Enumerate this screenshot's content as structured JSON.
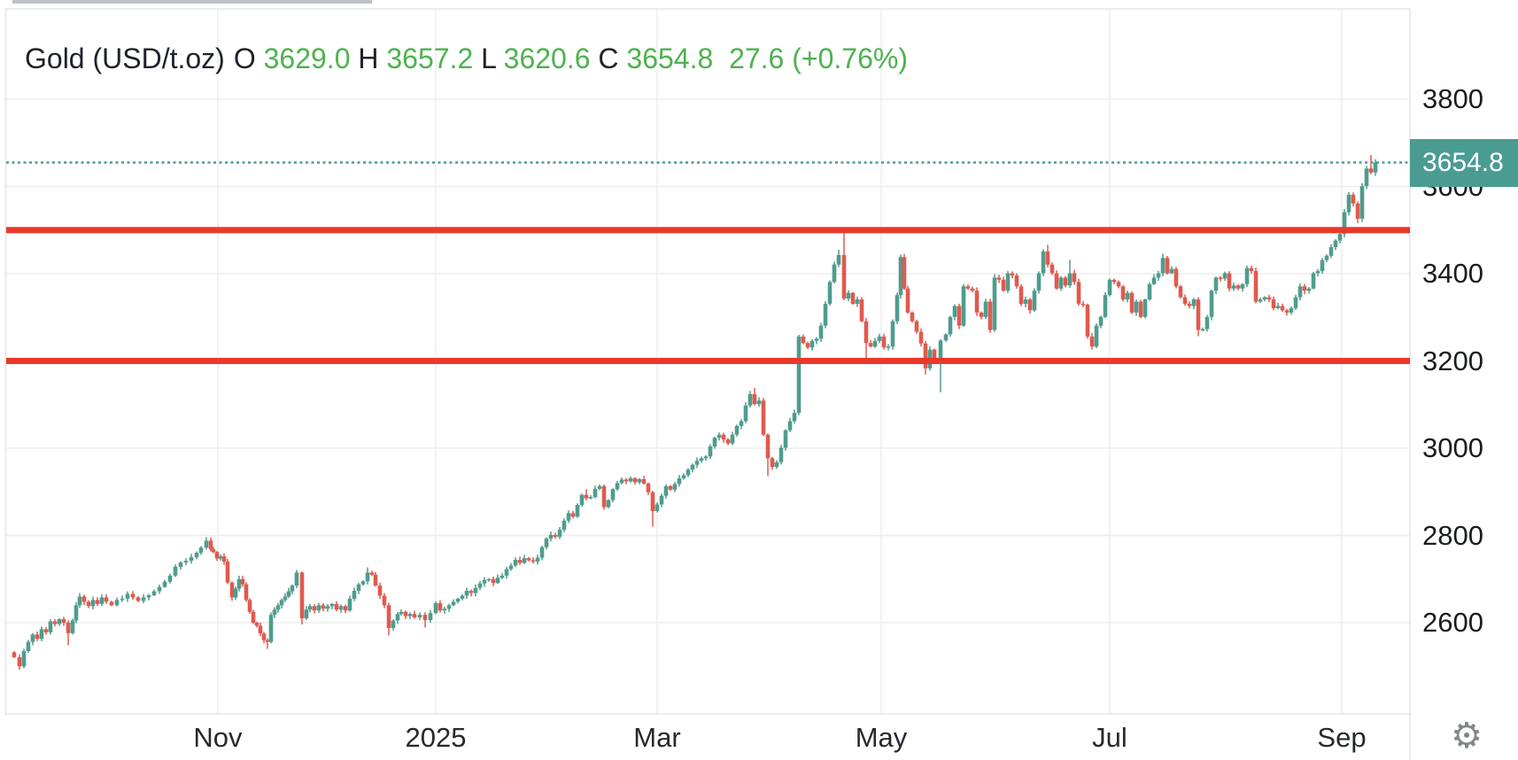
{
  "legend": {
    "symbol": "Gold (USD/t.oz)",
    "o_label": "O",
    "open": "3629.0",
    "h_label": "H",
    "high": "3657.2",
    "l_label": "L",
    "low": "3620.6",
    "c_label": "C",
    "close": "3654.8",
    "change": "27.6 (+0.76%)"
  },
  "price_label": "3654.8",
  "icons": {
    "settings": "⚙"
  },
  "colors": {
    "up": "#4f9c8e",
    "down": "#e05a4e",
    "annotation_line": "#ea392b",
    "last_price_line": "#4a9c93",
    "label_box": "#4a9c93",
    "legend_green": "#4db24e",
    "grid": "#ededee",
    "border": "#e4e6e8"
  },
  "chart_data": {
    "type": "candlestick",
    "title": "Gold (USD/t.oz)",
    "last": {
      "open": 3629.0,
      "high": 3657.2,
      "low": 3620.6,
      "close": 3654.8,
      "change": 27.6,
      "change_pct": "+0.76%"
    },
    "y_ticks": [
      3800,
      3600,
      3400,
      3200,
      3000,
      2800,
      2600
    ],
    "ylim_visible": [
      2392,
      4007
    ],
    "x_ticks": [
      {
        "label": "Nov",
        "x": 246
      },
      {
        "label": "2025",
        "x": 492
      },
      {
        "label": "Mar",
        "x": 742
      },
      {
        "label": "May",
        "x": 995
      },
      {
        "label": "Jul",
        "x": 1253
      },
      {
        "label": "Sep",
        "x": 1515
      }
    ],
    "grid": true,
    "hlines": [
      3500,
      3200
    ],
    "last_price_line": 3654.8,
    "first_open": 2532,
    "closes": [
      [
        16,
        2521
      ],
      [
        22,
        2500
      ],
      [
        27,
        2535
      ],
      [
        32,
        2556
      ],
      [
        37,
        2573
      ],
      [
        42,
        2563
      ],
      [
        47,
        2585
      ],
      [
        52,
        2578
      ],
      [
        57,
        2603
      ],
      [
        62,
        2597
      ],
      [
        67,
        2608
      ],
      [
        72,
        2600
      ],
      [
        77,
        2576
      ],
      [
        82,
        2605
      ],
      [
        86,
        2640
      ],
      [
        90,
        2660
      ],
      [
        95,
        2648
      ],
      [
        100,
        2638
      ],
      [
        105,
        2652
      ],
      [
        110,
        2643
      ],
      [
        115,
        2658
      ],
      [
        120,
        2648
      ],
      [
        126,
        2640
      ],
      [
        132,
        2652
      ],
      [
        138,
        2655
      ],
      [
        144,
        2666
      ],
      [
        150,
        2658
      ],
      [
        156,
        2650
      ],
      [
        162,
        2658
      ],
      [
        168,
        2663
      ],
      [
        174,
        2672
      ],
      [
        180,
        2682
      ],
      [
        186,
        2694
      ],
      [
        192,
        2708
      ],
      [
        198,
        2728
      ],
      [
        204,
        2738
      ],
      [
        210,
        2742
      ],
      [
        216,
        2750
      ],
      [
        222,
        2760
      ],
      [
        227,
        2772
      ],
      [
        233,
        2788
      ],
      [
        238,
        2768
      ],
      [
        241,
        2762
      ],
      [
        245,
        2747
      ],
      [
        249,
        2752
      ],
      [
        253,
        2740
      ],
      [
        257,
        2692
      ],
      [
        262,
        2658
      ],
      [
        266,
        2678
      ],
      [
        270,
        2700
      ],
      [
        274,
        2688
      ],
      [
        278,
        2652
      ],
      [
        282,
        2625
      ],
      [
        286,
        2600
      ],
      [
        290,
        2593
      ],
      [
        294,
        2575
      ],
      [
        298,
        2560
      ],
      [
        302,
        2556
      ],
      [
        306,
        2618
      ],
      [
        310,
        2630
      ],
      [
        314,
        2640
      ],
      [
        318,
        2652
      ],
      [
        322,
        2660
      ],
      [
        326,
        2672
      ],
      [
        330,
        2685
      ],
      [
        335,
        2715
      ],
      [
        341,
        2610
      ],
      [
        346,
        2630
      ],
      [
        350,
        2638
      ],
      [
        355,
        2628
      ],
      [
        360,
        2640
      ],
      [
        365,
        2632
      ],
      [
        370,
        2638
      ],
      [
        375,
        2643
      ],
      [
        380,
        2630
      ],
      [
        385,
        2638
      ],
      [
        390,
        2628
      ],
      [
        395,
        2655
      ],
      [
        400,
        2673
      ],
      [
        405,
        2688
      ],
      [
        410,
        2695
      ],
      [
        415,
        2715
      ],
      [
        420,
        2710
      ],
      [
        424,
        2685
      ],
      [
        429,
        2662
      ],
      [
        434,
        2640
      ],
      [
        439,
        2588
      ],
      [
        444,
        2605
      ],
      [
        449,
        2620
      ],
      [
        453,
        2625
      ],
      [
        458,
        2615
      ],
      [
        463,
        2620
      ],
      [
        468,
        2612
      ],
      [
        474,
        2618
      ],
      [
        480,
        2606
      ],
      [
        486,
        2622
      ],
      [
        492,
        2645
      ],
      [
        497,
        2628
      ],
      [
        502,
        2632
      ],
      [
        507,
        2640
      ],
      [
        512,
        2648
      ],
      [
        517,
        2655
      ],
      [
        522,
        2662
      ],
      [
        527,
        2673
      ],
      [
        532,
        2668
      ],
      [
        537,
        2680
      ],
      [
        542,
        2690
      ],
      [
        547,
        2698
      ],
      [
        552,
        2700
      ],
      [
        557,
        2691
      ],
      [
        562,
        2703
      ],
      [
        567,
        2708
      ],
      [
        572,
        2723
      ],
      [
        577,
        2731
      ],
      [
        582,
        2744
      ],
      [
        587,
        2737
      ],
      [
        592,
        2748
      ],
      [
        597,
        2743
      ],
      [
        602,
        2740
      ],
      [
        607,
        2749
      ],
      [
        612,
        2773
      ],
      [
        617,
        2793
      ],
      [
        622,
        2801
      ],
      [
        627,
        2797
      ],
      [
        632,
        2813
      ],
      [
        637,
        2834
      ],
      [
        642,
        2851
      ],
      [
        647,
        2843
      ],
      [
        652,
        2870
      ],
      [
        657,
        2893
      ],
      [
        662,
        2885
      ],
      [
        667,
        2888
      ],
      [
        672,
        2907
      ],
      [
        677,
        2913
      ],
      [
        682,
        2865
      ],
      [
        687,
        2881
      ],
      [
        692,
        2906
      ],
      [
        697,
        2920
      ],
      [
        702,
        2928
      ],
      [
        707,
        2924
      ],
      [
        712,
        2931
      ],
      [
        717,
        2922
      ],
      [
        722,
        2929
      ],
      [
        727,
        2919
      ],
      [
        732,
        2899
      ],
      [
        737,
        2856
      ],
      [
        742,
        2871
      ],
      [
        747,
        2891
      ],
      [
        752,
        2913
      ],
      [
        757,
        2905
      ],
      [
        762,
        2918
      ],
      [
        767,
        2931
      ],
      [
        772,
        2938
      ],
      [
        777,
        2951
      ],
      [
        782,
        2962
      ],
      [
        787,
        2971
      ],
      [
        792,
        2977
      ],
      [
        797,
        2981
      ],
      [
        802,
        3004
      ],
      [
        807,
        3024
      ],
      [
        812,
        3031
      ],
      [
        817,
        3020
      ],
      [
        822,
        3011
      ],
      [
        827,
        3031
      ],
      [
        832,
        3051
      ],
      [
        837,
        3062
      ],
      [
        842,
        3098
      ],
      [
        847,
        3124
      ],
      [
        852,
        3101
      ],
      [
        857,
        3109
      ],
      [
        862,
        3031
      ],
      [
        867,
        2977
      ],
      [
        872,
        2957
      ],
      [
        877,
        2968
      ],
      [
        882,
        3001
      ],
      [
        887,
        3041
      ],
      [
        892,
        3062
      ],
      [
        897,
        3081
      ],
      [
        902,
        3256
      ],
      [
        907,
        3241
      ],
      [
        912,
        3231
      ],
      [
        917,
        3246
      ],
      [
        922,
        3251
      ],
      [
        927,
        3281
      ],
      [
        932,
        3331
      ],
      [
        937,
        3381
      ],
      [
        942,
        3421
      ],
      [
        947,
        3443
      ],
      [
        953,
        3343
      ],
      [
        958,
        3356
      ],
      [
        963,
        3331
      ],
      [
        968,
        3341
      ],
      [
        973,
        3291
      ],
      [
        978,
        3241
      ],
      [
        983,
        3233
      ],
      [
        988,
        3246
      ],
      [
        993,
        3256
      ],
      [
        998,
        3231
      ],
      [
        1003,
        3233
      ],
      [
        1008,
        3291
      ],
      [
        1013,
        3351
      ],
      [
        1017,
        3438
      ],
      [
        1021,
        3366
      ],
      [
        1025,
        3311
      ],
      [
        1030,
        3291
      ],
      [
        1035,
        3267
      ],
      [
        1040,
        3240
      ],
      [
        1045,
        3183
      ],
      [
        1050,
        3226
      ],
      [
        1055,
        3206
      ],
      [
        1062,
        3247
      ],
      [
        1068,
        3261
      ],
      [
        1073,
        3301
      ],
      [
        1078,
        3326
      ],
      [
        1083,
        3281
      ],
      [
        1088,
        3371
      ],
      [
        1093,
        3366
      ],
      [
        1098,
        3361
      ],
      [
        1103,
        3311
      ],
      [
        1108,
        3301
      ],
      [
        1113,
        3336
      ],
      [
        1118,
        3271
      ],
      [
        1123,
        3391
      ],
      [
        1128,
        3386
      ],
      [
        1133,
        3361
      ],
      [
        1138,
        3401
      ],
      [
        1143,
        3396
      ],
      [
        1148,
        3371
      ],
      [
        1153,
        3331
      ],
      [
        1158,
        3341
      ],
      [
        1163,
        3316
      ],
      [
        1168,
        3361
      ],
      [
        1173,
        3401
      ],
      [
        1178,
        3451
      ],
      [
        1183,
        3421
      ],
      [
        1188,
        3401
      ],
      [
        1193,
        3366
      ],
      [
        1198,
        3391
      ],
      [
        1203,
        3373
      ],
      [
        1208,
        3401
      ],
      [
        1213,
        3381
      ],
      [
        1218,
        3331
      ],
      [
        1223,
        3329
      ],
      [
        1228,
        3256
      ],
      [
        1233,
        3233
      ],
      [
        1238,
        3281
      ],
      [
        1243,
        3301
      ],
      [
        1248,
        3351
      ],
      [
        1253,
        3386
      ],
      [
        1258,
        3381
      ],
      [
        1263,
        3371
      ],
      [
        1268,
        3341
      ],
      [
        1273,
        3356
      ],
      [
        1278,
        3311
      ],
      [
        1283,
        3336
      ],
      [
        1288,
        3301
      ],
      [
        1293,
        3341
      ],
      [
        1298,
        3376
      ],
      [
        1303,
        3391
      ],
      [
        1308,
        3401
      ],
      [
        1313,
        3436
      ],
      [
        1318,
        3401
      ],
      [
        1323,
        3411
      ],
      [
        1328,
        3371
      ],
      [
        1333,
        3346
      ],
      [
        1338,
        3331
      ],
      [
        1343,
        3326
      ],
      [
        1348,
        3341
      ],
      [
        1353,
        3271
      ],
      [
        1358,
        3273
      ],
      [
        1363,
        3301
      ],
      [
        1368,
        3361
      ],
      [
        1373,
        3391
      ],
      [
        1378,
        3389
      ],
      [
        1383,
        3401
      ],
      [
        1388,
        3366
      ],
      [
        1393,
        3373
      ],
      [
        1398,
        3366
      ],
      [
        1403,
        3376
      ],
      [
        1408,
        3413
      ],
      [
        1413,
        3406
      ],
      [
        1418,
        3336
      ],
      [
        1423,
        3341
      ],
      [
        1428,
        3346
      ],
      [
        1433,
        3341
      ],
      [
        1438,
        3321
      ],
      [
        1443,
        3326
      ],
      [
        1448,
        3316
      ],
      [
        1453,
        3311
      ],
      [
        1458,
        3321
      ],
      [
        1463,
        3346
      ],
      [
        1468,
        3371
      ],
      [
        1473,
        3361
      ],
      [
        1478,
        3366
      ],
      [
        1483,
        3401
      ],
      [
        1488,
        3406
      ],
      [
        1493,
        3431
      ],
      [
        1498,
        3441
      ],
      [
        1503,
        3461
      ],
      [
        1508,
        3476
      ],
      [
        1513,
        3491
      ],
      [
        1518,
        3541
      ],
      [
        1523,
        3581
      ],
      [
        1528,
        3561
      ],
      [
        1533,
        3526
      ],
      [
        1538,
        3601
      ],
      [
        1543,
        3641
      ],
      [
        1548,
        3632
      ],
      [
        1553,
        3654.8
      ]
    ],
    "wick_high_overrides": {
      "90": 2668,
      "144": 2672,
      "233": 2796,
      "415": 2727,
      "662": 2906,
      "852": 3138,
      "947": 3455,
      "953": 3498,
      "1017": 3444,
      "1178": 3456,
      "1183": 3466,
      "1208": 3432,
      "1313": 3446,
      "1548": 3672
    },
    "wick_low_overrides": {
      "22": 2492,
      "77": 2548,
      "302": 2540,
      "341": 2596,
      "439": 2571,
      "480": 2589,
      "737": 2820,
      "867": 2936,
      "978": 3198,
      "1045": 3169,
      "1062": 3128,
      "1233": 3226,
      "1353": 3257,
      "1533": 3516
    }
  }
}
